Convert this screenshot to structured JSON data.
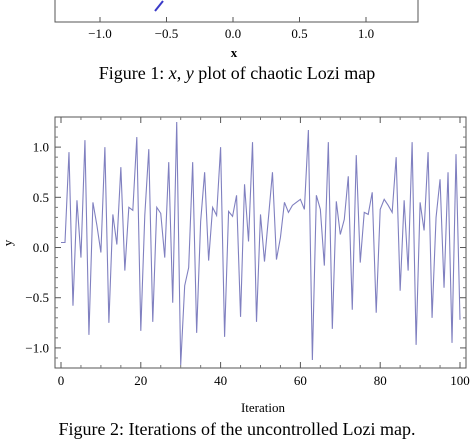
{
  "figure1": {
    "x_ticks": [
      "−1.0",
      "−0.5",
      "0.0",
      "0.5",
      "1.0"
    ],
    "xlabel": "x",
    "caption": {
      "prefix": "Figure 1: ",
      "var_x": "x",
      "sep": ", ",
      "var_y": "y",
      "suffix": " plot of chaotic Lozi map"
    },
    "line_color": "#3a3ac8"
  },
  "chart_data": {
    "type": "line",
    "xlabel": "Iteration",
    "ylabel": "y",
    "xlim": [
      0,
      100
    ],
    "ylim": [
      -1.2,
      1.3
    ],
    "x_ticks": [
      0,
      20,
      40,
      60,
      80,
      100
    ],
    "x_tick_labels": [
      "0",
      "20",
      "40",
      "60",
      "80",
      "100"
    ],
    "y_ticks": [
      -1.0,
      -0.5,
      0.0,
      0.5,
      1.0
    ],
    "y_tick_labels": [
      "−1.0",
      "−0.5",
      "0.0",
      "0.5",
      "1.0"
    ],
    "grid": false,
    "series": [
      {
        "color": "#8080c0",
        "values": [
          0.05,
          0.05,
          0.95,
          -0.58,
          0.47,
          -0.1,
          1.07,
          -0.87,
          0.45,
          0.22,
          -0.05,
          1.0,
          -0.75,
          0.33,
          0.03,
          0.8,
          -0.23,
          0.4,
          0.37,
          1.1,
          -0.83,
          0.32,
          0.98,
          -0.74,
          0.4,
          0.34,
          -0.1,
          0.85,
          -0.55,
          1.25,
          -1.17,
          -0.38,
          -0.2,
          0.85,
          -0.85,
          0.26,
          0.75,
          -0.13,
          0.4,
          0.32,
          1.0,
          -0.89,
          0.36,
          0.31,
          0.52,
          -0.69,
          0.63,
          0.06,
          1.05,
          -0.74,
          0.33,
          -0.14,
          0.3,
          0.75,
          -0.12,
          0.1,
          0.45,
          0.35,
          0.42,
          0.45,
          0.48,
          0.38,
          1.17,
          -1.12,
          0.52,
          0.38,
          -0.18,
          1.05,
          -0.81,
          0.46,
          0.13,
          0.28,
          0.71,
          -0.62,
          0.92,
          -0.15,
          0.35,
          0.33,
          0.55,
          -0.65,
          0.38,
          0.48,
          0.42,
          0.35,
          0.9,
          -0.43,
          0.47,
          -0.23,
          1.05,
          -0.97,
          0.45,
          0.17,
          0.95,
          -0.7,
          0.3,
          0.68,
          -0.4,
          0.75,
          -0.95,
          0.93,
          -0.72
        ]
      }
    ]
  },
  "figure2": {
    "caption": "Figure 2: Iterations of the uncontrolled Lozi map."
  }
}
